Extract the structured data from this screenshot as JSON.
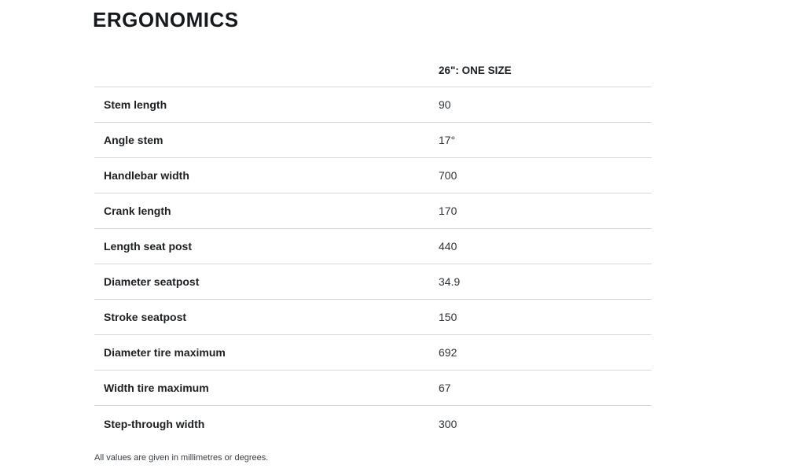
{
  "page": {
    "title": "ERGONOMICS",
    "footnote": "All values are given in millimetres or degrees."
  },
  "table": {
    "size_header": "26\": ONE SIZE",
    "rows": [
      {
        "label": "Stem length",
        "value": "90"
      },
      {
        "label": "Angle stem",
        "value": "17°"
      },
      {
        "label": "Handlebar width",
        "value": "700"
      },
      {
        "label": "Crank length",
        "value": "170"
      },
      {
        "label": "Length seat post",
        "value": "440"
      },
      {
        "label": "Diameter seatpost",
        "value": "34.9"
      },
      {
        "label": "Stroke seatpost",
        "value": "150"
      },
      {
        "label": "Diameter tire maximum",
        "value": "692"
      },
      {
        "label": "Width tire maximum",
        "value": "67"
      },
      {
        "label": "Step-through width",
        "value": "300"
      }
    ]
  },
  "colors": {
    "divider": "#d3d8da",
    "heading_text": "#15181c",
    "label_text": "#1c1f22",
    "value_text": "#2e3338"
  }
}
